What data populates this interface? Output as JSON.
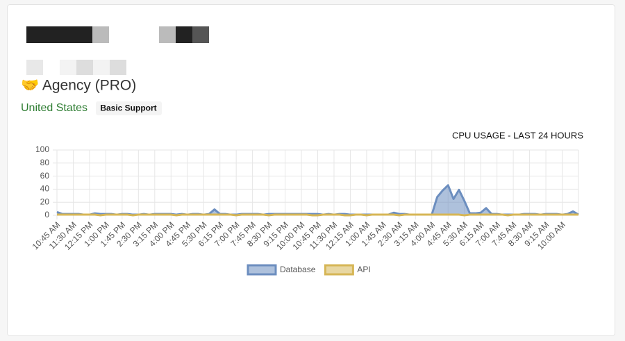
{
  "header": {
    "plan": "🤝 Agency (PRO)",
    "country": "United States",
    "badge": "Basic Support"
  },
  "chart_data": {
    "type": "area",
    "title": "CPU USAGE - LAST 24 HOURS",
    "categories": [
      "10:45 AM",
      null,
      null,
      "11:30 AM",
      null,
      null,
      "12:15 PM",
      null,
      null,
      "1:00 PM",
      null,
      null,
      "1:45 PM",
      null,
      null,
      "2:30 PM",
      null,
      null,
      "3:15 PM",
      null,
      null,
      "4:00 PM",
      null,
      null,
      "4:45 PM",
      null,
      null,
      "5:30 PM",
      null,
      null,
      "6:15 PM",
      null,
      null,
      "7:00 PM",
      null,
      null,
      "7:45 PM",
      null,
      null,
      "8:30 PM",
      null,
      null,
      "9:15 PM",
      null,
      null,
      "10:00 PM",
      null,
      null,
      "10:45 PM",
      null,
      null,
      "11:30 PM",
      null,
      null,
      "12:15 AM",
      null,
      null,
      "1:00 AM",
      null,
      null,
      "1:45 AM",
      null,
      null,
      "2:30 AM",
      null,
      null,
      "3:15 AM",
      null,
      null,
      "4:00 AM",
      null,
      null,
      "4:45 AM",
      null,
      null,
      "5:30 AM",
      null,
      null,
      "6:15 AM",
      null,
      null,
      "7:00 AM",
      null,
      null,
      "7:45 AM",
      null,
      null,
      "8:30 AM",
      null,
      null,
      "9:15 AM",
      null,
      null,
      "10:00 AM",
      null,
      null,
      null
    ],
    "series": [
      {
        "name": "Database",
        "color": "#6c8ebf",
        "values": [
          5,
          2,
          2,
          2,
          2,
          1,
          1,
          3,
          2,
          2,
          2,
          1,
          2,
          2,
          1,
          1,
          2,
          1,
          2,
          2,
          2,
          2,
          1,
          2,
          1,
          2,
          2,
          1,
          2,
          9,
          2,
          2,
          1,
          1,
          2,
          2,
          2,
          2,
          1,
          2,
          2,
          2,
          2,
          2,
          2,
          2,
          2,
          2,
          2,
          1,
          2,
          1,
          2,
          2,
          1,
          1,
          1,
          1,
          1,
          1,
          1,
          1,
          4,
          2,
          2,
          1,
          1,
          1,
          1,
          1,
          28,
          38,
          46,
          25,
          39,
          22,
          3,
          3,
          4,
          11,
          2,
          2,
          1,
          1,
          1,
          1,
          2,
          2,
          2,
          1,
          2,
          2,
          2,
          1,
          2,
          6,
          1
        ]
      },
      {
        "name": "API",
        "color": "#d6b656",
        "values": [
          1,
          1,
          1,
          1,
          1,
          1,
          1,
          1,
          0,
          1,
          1,
          1,
          1,
          1,
          0,
          1,
          1,
          1,
          1,
          1,
          1,
          1,
          0,
          1,
          1,
          1,
          1,
          1,
          1,
          1,
          1,
          1,
          1,
          0,
          1,
          1,
          1,
          1,
          1,
          0,
          1,
          1,
          1,
          1,
          1,
          1,
          1,
          0,
          0,
          1,
          1,
          1,
          1,
          0,
          0,
          1,
          1,
          0,
          1,
          1,
          1,
          1,
          1,
          0,
          1,
          1,
          1,
          1,
          1,
          1,
          1,
          1,
          1,
          1,
          1,
          0,
          1,
          1,
          1,
          1,
          1,
          1,
          1,
          0,
          1,
          1,
          1,
          1,
          1,
          1,
          1,
          1,
          1,
          1,
          1,
          1,
          1
        ]
      }
    ],
    "ylim": [
      0,
      100
    ],
    "yticks": [
      0,
      20,
      40,
      60,
      80,
      100
    ],
    "grid": true,
    "legend": "bottom"
  }
}
